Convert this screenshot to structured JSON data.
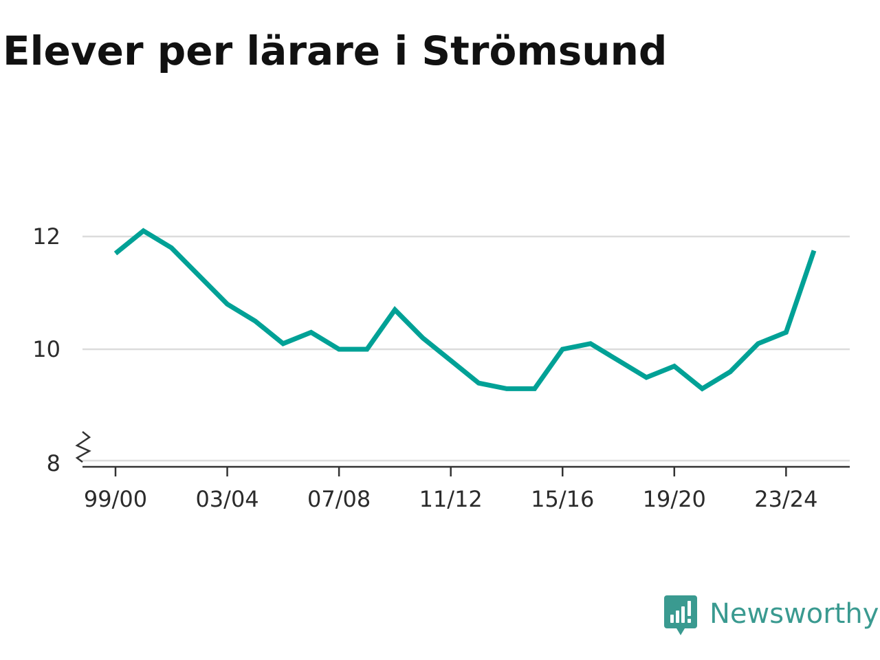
{
  "chart_data": {
    "type": "line",
    "title": "Elever per lärare i Strömsund",
    "xlabel": "",
    "ylabel": "",
    "x": [
      "99/00",
      "00/01",
      "01/02",
      "02/03",
      "03/04",
      "04/05",
      "05/06",
      "06/07",
      "07/08",
      "08/09",
      "09/10",
      "10/11",
      "11/12",
      "12/13",
      "13/14",
      "14/15",
      "15/16",
      "16/17",
      "17/18",
      "18/19",
      "19/20",
      "20/21",
      "21/22",
      "22/23",
      "23/24",
      "24/25"
    ],
    "series": [
      {
        "values": [
          11.7,
          12.1,
          11.8,
          11.3,
          10.8,
          10.5,
          10.1,
          10.3,
          10.0,
          10.0,
          10.7,
          10.2,
          9.8,
          9.4,
          9.3,
          9.3,
          10.0,
          10.1,
          9.8,
          9.5,
          9.7,
          9.3,
          9.6,
          10.1,
          10.3,
          11.75
        ],
        "color": "#00a196"
      }
    ],
    "x_tick_labels": [
      "99/00",
      "03/04",
      "07/08",
      "11/12",
      "15/16",
      "19/20",
      "23/24"
    ],
    "y_ticks": [
      8,
      10,
      12
    ],
    "ylim": [
      8,
      12
    ],
    "y_axis_break": true,
    "grid": true
  },
  "brand": {
    "name": "Newsworthy",
    "icon": "newsworthy-logo-icon",
    "color": "#3a9a90"
  }
}
